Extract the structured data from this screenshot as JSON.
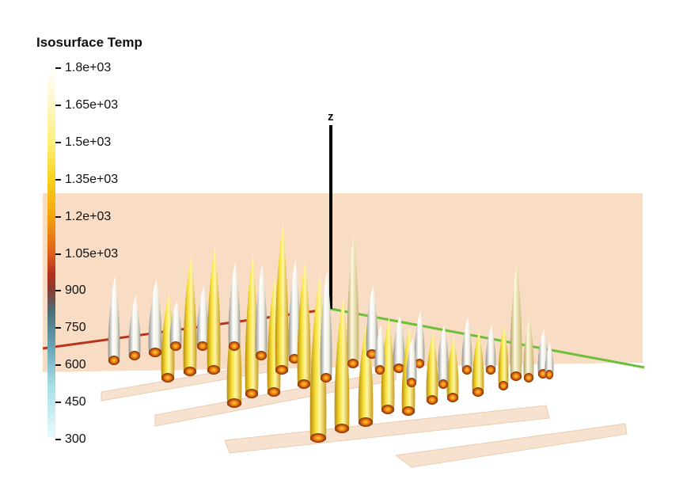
{
  "legend": {
    "title": "Isosurface Temp",
    "ticks": [
      "1.8e+03",
      "1.65e+03",
      "1.5e+03",
      "1.35e+03",
      "1.2e+03",
      "1.05e+03",
      "900",
      "750",
      "600",
      "450",
      "300"
    ]
  },
  "axes": {
    "z_label": "z"
  },
  "colors": {
    "background_plane": "#f9dcc4",
    "x_axis": "#b8341c",
    "y_axis": "#6cbf3a",
    "z_axis": "#000000",
    "floor_bars": "#f5e3d2"
  }
}
